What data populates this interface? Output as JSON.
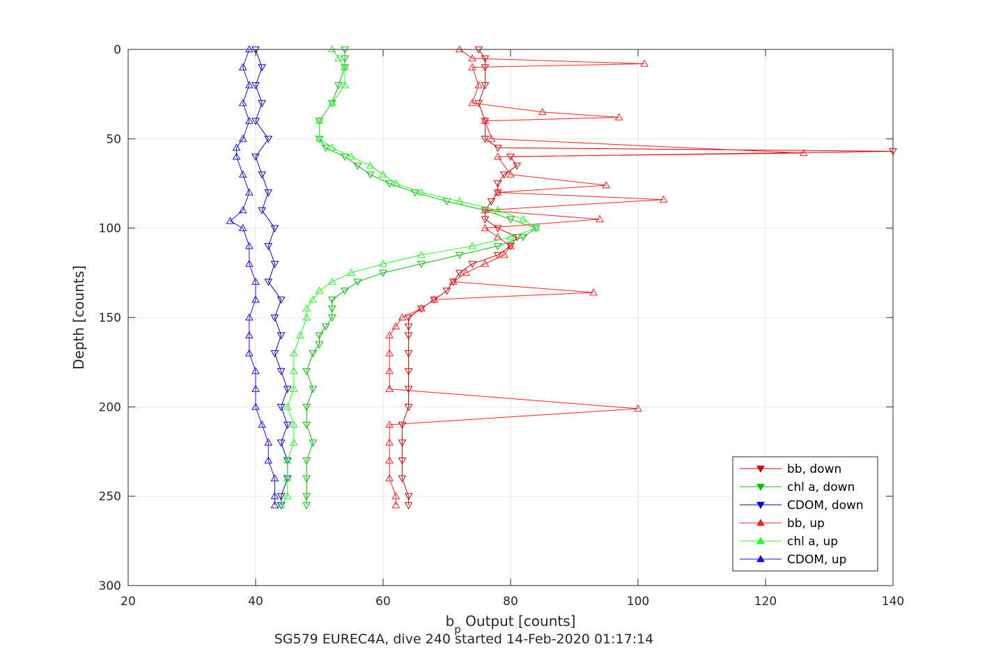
{
  "chart_data": {
    "type": "line",
    "title": "",
    "caption": "SG579 EUREC4A, dive 240 started 14-Feb-2020 01:17:14",
    "xlabel": {
      "base": "b",
      "sub": "p",
      "rest": " Output [counts]"
    },
    "ylabel": "Depth [counts]",
    "xlim": [
      20,
      140
    ],
    "ylim": [
      0,
      300
    ],
    "y_reversed": true,
    "grid": true,
    "legend_position": "bottom-right",
    "x_ticks": [
      20,
      40,
      60,
      80,
      100,
      120,
      140
    ],
    "y_ticks": [
      0,
      50,
      100,
      150,
      200,
      250,
      300
    ],
    "series": [
      {
        "name": "bb, down",
        "color": "#d60000",
        "marker": "triangle-down",
        "depth": [
          0,
          5,
          10,
          20,
          30,
          40,
          50,
          55,
          57,
          60,
          65,
          70,
          75,
          80,
          85,
          90,
          95,
          100,
          105,
          110,
          115,
          120,
          125,
          130,
          135,
          140,
          145,
          150,
          155,
          160,
          170,
          180,
          190,
          200,
          210,
          220,
          230,
          240,
          250,
          255
        ],
        "values": [
          75,
          76,
          76,
          76,
          75,
          76,
          76,
          78,
          140,
          80,
          81,
          79,
          78,
          78,
          77,
          76,
          76,
          78,
          81,
          80,
          78,
          74,
          72,
          71,
          70,
          68,
          66,
          64,
          64,
          64,
          64,
          64,
          64,
          64,
          63,
          63,
          63,
          63,
          64,
          64
        ]
      },
      {
        "name": "chl a, down",
        "color": "#00c000",
        "marker": "triangle-down",
        "depth": [
          0,
          5,
          10,
          20,
          30,
          40,
          50,
          55,
          60,
          65,
          70,
          75,
          80,
          85,
          90,
          95,
          100,
          105,
          110,
          115,
          120,
          125,
          130,
          135,
          140,
          145,
          150,
          155,
          160,
          165,
          170,
          180,
          190,
          200,
          210,
          220,
          230,
          240,
          250,
          255
        ],
        "values": [
          54,
          54,
          54,
          53,
          52,
          50,
          50,
          51,
          54,
          56,
          58,
          61,
          65,
          70,
          76,
          80,
          84,
          82,
          78,
          72,
          66,
          60,
          56,
          54,
          52,
          52,
          52,
          51,
          50,
          50,
          49,
          48,
          49,
          48,
          48,
          49,
          48,
          48,
          48,
          48
        ]
      },
      {
        "name": "CDOM, down",
        "color": "#0000d0",
        "marker": "triangle-down",
        "depth": [
          0,
          10,
          20,
          30,
          40,
          50,
          60,
          70,
          80,
          90,
          100,
          110,
          120,
          130,
          140,
          150,
          160,
          170,
          180,
          190,
          200,
          210,
          220,
          230,
          240,
          250,
          255
        ],
        "values": [
          40,
          41,
          40,
          41,
          40,
          42,
          40,
          41,
          42,
          41,
          43,
          42,
          43,
          42,
          44,
          43,
          44,
          43,
          44,
          45,
          44,
          45,
          44,
          45,
          45,
          44,
          44
        ]
      },
      {
        "name": "bb, up",
        "color": "#ff2020",
        "marker": "triangle-up",
        "depth": [
          0,
          5,
          8,
          10,
          20,
          30,
          35,
          38,
          40,
          50,
          58,
          60,
          70,
          76,
          80,
          84,
          90,
          95,
          100,
          105,
          110,
          115,
          120,
          125,
          130,
          136,
          140,
          145,
          150,
          155,
          160,
          170,
          180,
          190,
          201,
          210,
          220,
          230,
          240,
          250,
          255
        ],
        "values": [
          72,
          74,
          101,
          74,
          75,
          74,
          85,
          97,
          76,
          77,
          126,
          78,
          80,
          95,
          78,
          104,
          76,
          94,
          76,
          78,
          80,
          79,
          76,
          73,
          71,
          93,
          68,
          66,
          63,
          62,
          61,
          61,
          61,
          61,
          100,
          61,
          61,
          61,
          61,
          62,
          62
        ]
      },
      {
        "name": "chl a, up",
        "color": "#20ff20",
        "marker": "triangle-up",
        "depth": [
          0,
          5,
          10,
          20,
          30,
          40,
          50,
          55,
          60,
          65,
          70,
          75,
          80,
          85,
          90,
          95,
          100,
          105,
          110,
          115,
          120,
          125,
          130,
          135,
          140,
          145,
          150,
          160,
          170,
          180,
          190,
          200,
          210,
          220,
          230,
          240,
          250,
          255
        ],
        "values": [
          52,
          53,
          54,
          54,
          52,
          50,
          50,
          52,
          55,
          58,
          60,
          62,
          66,
          72,
          78,
          82,
          84,
          80,
          74,
          66,
          60,
          55,
          52,
          50,
          49,
          48,
          48,
          47,
          46,
          46,
          46,
          45,
          46,
          46,
          45,
          45,
          45,
          44
        ]
      },
      {
        "name": "CDOM, up",
        "color": "#1010ff",
        "marker": "triangle-up",
        "depth": [
          0,
          10,
          20,
          30,
          40,
          50,
          55,
          60,
          70,
          80,
          90,
          96,
          100,
          110,
          120,
          130,
          140,
          150,
          160,
          170,
          180,
          190,
          200,
          210,
          220,
          230,
          240,
          250,
          255
        ],
        "values": [
          39,
          38,
          39,
          38,
          39,
          38,
          37,
          37,
          38,
          39,
          38,
          36,
          38,
          39,
          39,
          40,
          40,
          39,
          39,
          39,
          40,
          40,
          40,
          41,
          42,
          42,
          43,
          43,
          43
        ]
      }
    ]
  }
}
